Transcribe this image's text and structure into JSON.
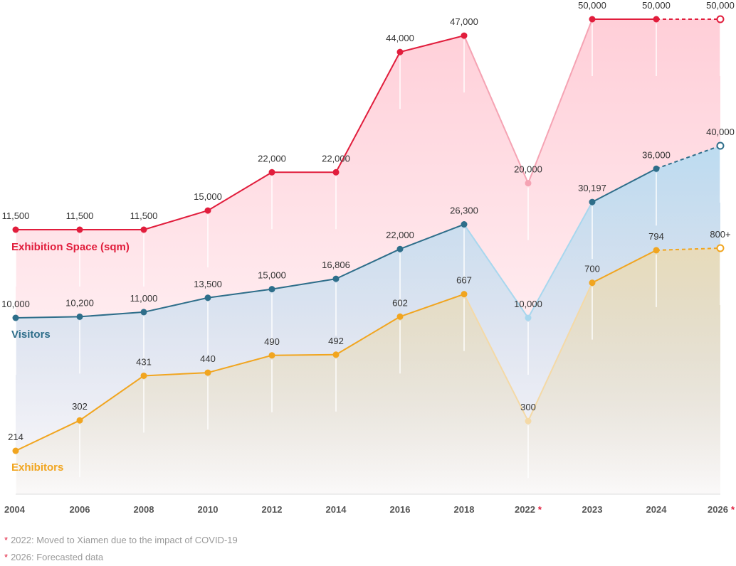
{
  "chart_data": {
    "type": "line",
    "x": [
      "2004",
      "2006",
      "2008",
      "2010",
      "2012",
      "2014",
      "2016",
      "2018",
      "2022",
      "2023",
      "2024",
      "2026"
    ],
    "x_marks": {
      "2022": "*",
      "2026": "*"
    },
    "series": [
      {
        "key": "exhibition_space",
        "name": "Exhibition Space (sqm)",
        "color": "#e11d3c",
        "fade_color": "#f5a3b3",
        "area_color": "#ffccd6",
        "values": [
          11500,
          11500,
          11500,
          15000,
          22000,
          22000,
          44000,
          47000,
          20000,
          50000,
          50000,
          50000
        ],
        "labels": [
          "11,500",
          "11,500",
          "11,500",
          "15,000",
          "22,000",
          "22,000",
          "44,000",
          "47,000",
          "20,000",
          "50,000",
          "50,000",
          "50,000"
        ],
        "forecast_from_index": 10
      },
      {
        "key": "visitors",
        "name": "Visitors",
        "color": "#2e6e8a",
        "fade_color": "#a8d7ee",
        "area_color": "#b9dcf1",
        "values": [
          10000,
          10200,
          11000,
          13500,
          15000,
          16806,
          22000,
          26300,
          10000,
          30197,
          36000,
          40000
        ],
        "labels": [
          "10,000",
          "10,200",
          "11,000",
          "13,500",
          "15,000",
          "16,806",
          "22,000",
          "26,300",
          "10,000",
          "30,197",
          "36,000",
          "40,000"
        ],
        "forecast_from_index": 10
      },
      {
        "key": "exhibitors",
        "name": "Exhibitors",
        "color": "#f1a51f",
        "fade_color": "#f4d9a6",
        "area_color": "#e9dbb8",
        "values": [
          214,
          302,
          431,
          440,
          490,
          492,
          602,
          667,
          300,
          700,
          794,
          800
        ],
        "labels": [
          "214",
          "302",
          "431",
          "440",
          "490",
          "492",
          "602",
          "667",
          "300",
          "700",
          "794",
          "800+"
        ],
        "forecast_from_index": 10
      }
    ],
    "xlabel": "",
    "ylabel": "",
    "grid": false,
    "legend": "inline-left"
  },
  "footnotes": [
    {
      "mark": "*",
      "text": "2022: Moved to Xiamen due to the impact of COVID-19"
    },
    {
      "mark": "*",
      "text": "2026: Forecasted data"
    }
  ]
}
